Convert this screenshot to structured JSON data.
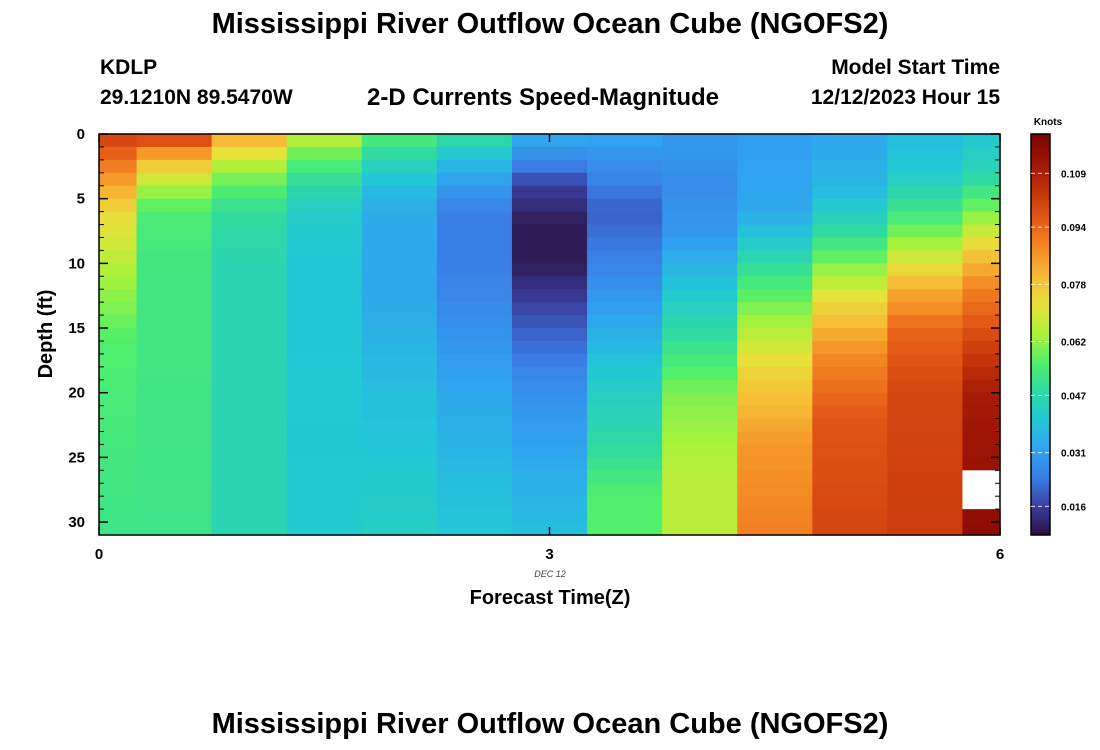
{
  "header": {
    "title": "Mississippi River Outflow Ocean Cube (NGOFS2)",
    "station_id": "KDLP",
    "coordinates": "29.1210N  89.5470W",
    "subtitle": "2-D Currents Speed-Magnitude",
    "model_start_label": "Model Start Time",
    "model_start_value": "12/12/2023 Hour 15"
  },
  "footer": {
    "title_repeat": "Mississippi River Outflow Ocean Cube (NGOFS2)"
  },
  "chart_data": {
    "type": "heatmap",
    "xlabel": "Forecast Time(Z)",
    "ylabel": "Depth (ft)",
    "x_ticks": [
      0,
      3,
      6
    ],
    "x_range": [
      0,
      6
    ],
    "date_annotation": "DEC 12",
    "y_ticks": [
      0,
      5,
      10,
      15,
      20,
      25,
      30
    ],
    "y_range": [
      0,
      31
    ],
    "y_reversed": true,
    "colorbar": {
      "title": "Knots",
      "ticks": [
        0.016,
        0.031,
        0.047,
        0.062,
        0.078,
        0.094,
        0.109
      ],
      "range": [
        0.008,
        0.12
      ],
      "colors": [
        "#2a1040",
        "#3a3e9e",
        "#3a7fe6",
        "#30a3f0",
        "#22c8d6",
        "#2ed9a4",
        "#50ef6c",
        "#a8f23a",
        "#e6e23a",
        "#f7bb36",
        "#f48c25",
        "#e55a16",
        "#c33209",
        "#9e1505",
        "#7a0403"
      ]
    },
    "columns": [
      {
        "x0": 0.0,
        "x1": 0.25,
        "profile": [
          [
            0,
            0.102
          ],
          [
            3,
            0.088
          ],
          [
            6,
            0.074
          ],
          [
            11,
            0.064
          ],
          [
            16,
            0.056
          ],
          [
            22,
            0.054
          ],
          [
            31,
            0.052
          ]
        ]
      },
      {
        "x0": 0.25,
        "x1": 0.75,
        "profile": [
          [
            0,
            0.104
          ],
          [
            2,
            0.08
          ],
          [
            4,
            0.065
          ],
          [
            6,
            0.055
          ],
          [
            10,
            0.053
          ],
          [
            31,
            0.052
          ]
        ]
      },
      {
        "x0": 0.75,
        "x1": 1.25,
        "profile": [
          [
            0,
            0.084
          ],
          [
            2,
            0.068
          ],
          [
            4,
            0.057
          ],
          [
            6,
            0.049
          ],
          [
            10,
            0.046
          ],
          [
            31,
            0.046
          ]
        ]
      },
      {
        "x0": 1.25,
        "x1": 1.75,
        "profile": [
          [
            0,
            0.068
          ],
          [
            2,
            0.056
          ],
          [
            4,
            0.048
          ],
          [
            6,
            0.042
          ],
          [
            10,
            0.04
          ],
          [
            31,
            0.041
          ]
        ]
      },
      {
        "x0": 1.75,
        "x1": 2.25,
        "profile": [
          [
            0,
            0.056
          ],
          [
            2,
            0.046
          ],
          [
            4,
            0.038
          ],
          [
            6,
            0.034
          ],
          [
            12,
            0.033
          ],
          [
            20,
            0.038
          ],
          [
            31,
            0.043
          ]
        ]
      },
      {
        "x0": 2.25,
        "x1": 2.75,
        "profile": [
          [
            0,
            0.05
          ],
          [
            2,
            0.038
          ],
          [
            4,
            0.03
          ],
          [
            6,
            0.024
          ],
          [
            10,
            0.024
          ],
          [
            14,
            0.027
          ],
          [
            20,
            0.033
          ],
          [
            31,
            0.04
          ]
        ]
      },
      {
        "x0": 2.75,
        "x1": 3.25,
        "profile": [
          [
            0,
            0.035
          ],
          [
            2,
            0.026
          ],
          [
            4,
            0.016
          ],
          [
            7,
            0.01
          ],
          [
            10,
            0.01
          ],
          [
            14,
            0.018
          ],
          [
            20,
            0.028
          ],
          [
            26,
            0.034
          ],
          [
            31,
            0.038
          ]
        ]
      },
      {
        "x0": 3.25,
        "x1": 3.75,
        "profile": [
          [
            0,
            0.033
          ],
          [
            3,
            0.026
          ],
          [
            6,
            0.02
          ],
          [
            10,
            0.025
          ],
          [
            14,
            0.032
          ],
          [
            18,
            0.04
          ],
          [
            24,
            0.048
          ],
          [
            28,
            0.056
          ],
          [
            31,
            0.056
          ]
        ]
      },
      {
        "x0": 3.75,
        "x1": 4.25,
        "profile": [
          [
            0,
            0.03
          ],
          [
            4,
            0.027
          ],
          [
            8,
            0.03
          ],
          [
            12,
            0.04
          ],
          [
            16,
            0.05
          ],
          [
            20,
            0.06
          ],
          [
            26,
            0.066
          ],
          [
            31,
            0.066
          ]
        ]
      },
      {
        "x0": 4.25,
        "x1": 4.75,
        "profile": [
          [
            0,
            0.031
          ],
          [
            6,
            0.033
          ],
          [
            8,
            0.04
          ],
          [
            11,
            0.052
          ],
          [
            14,
            0.062
          ],
          [
            18,
            0.074
          ],
          [
            24,
            0.086
          ],
          [
            31,
            0.09
          ]
        ]
      },
      {
        "x0": 4.75,
        "x1": 5.25,
        "profile": [
          [
            0,
            0.033
          ],
          [
            4,
            0.036
          ],
          [
            7,
            0.046
          ],
          [
            10,
            0.06
          ],
          [
            13,
            0.074
          ],
          [
            17,
            0.088
          ],
          [
            22,
            0.097
          ],
          [
            31,
            0.1
          ]
        ]
      },
      {
        "x0": 5.25,
        "x1": 5.75,
        "profile": [
          [
            0,
            0.037
          ],
          [
            3,
            0.041
          ],
          [
            6,
            0.052
          ],
          [
            9,
            0.066
          ],
          [
            12,
            0.082
          ],
          [
            15,
            0.094
          ],
          [
            20,
            0.1
          ],
          [
            31,
            0.102
          ]
        ]
      },
      {
        "x0": 5.75,
        "x1": 6.0,
        "profile": [
          [
            0,
            0.04
          ],
          [
            3,
            0.046
          ],
          [
            6,
            0.06
          ],
          [
            9,
            0.076
          ],
          [
            12,
            0.09
          ],
          [
            16,
            0.1
          ],
          [
            20,
            0.11
          ],
          [
            31,
            0.116
          ]
        ],
        "missing": [
          [
            26.5,
            28.5
          ]
        ]
      }
    ]
  }
}
